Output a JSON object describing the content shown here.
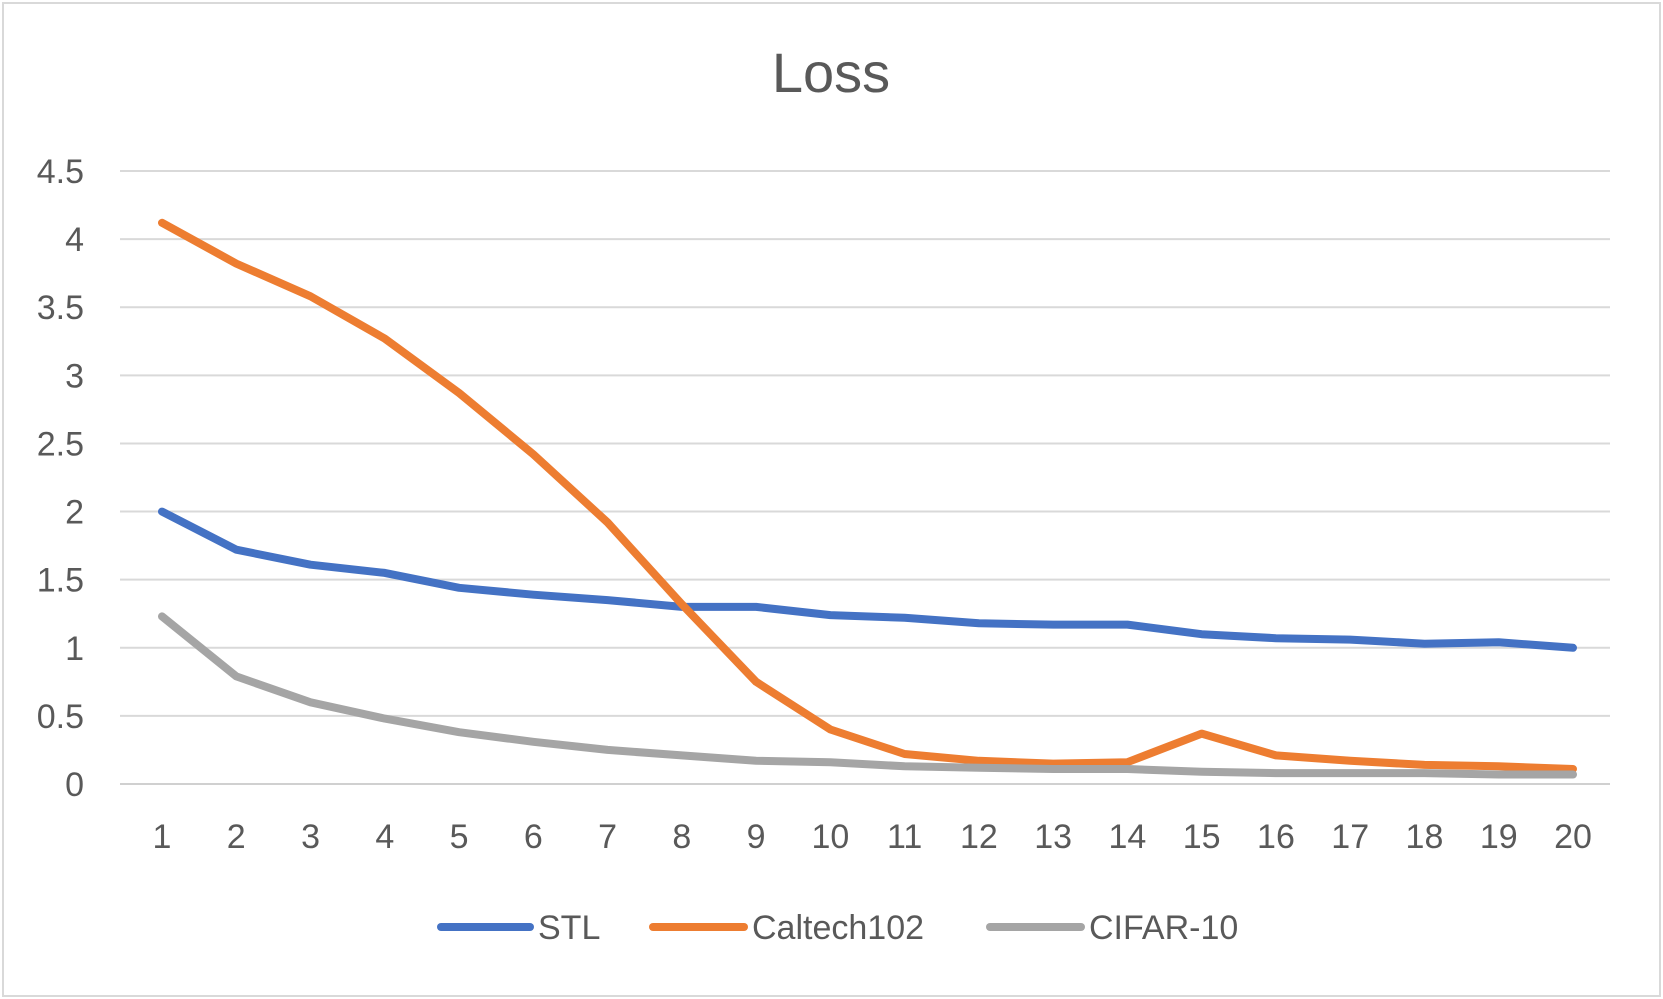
{
  "chart_data": {
    "type": "line",
    "title": "Loss",
    "xlabel": "",
    "ylabel": "",
    "x": [
      "1",
      "2",
      "3",
      "4",
      "5",
      "6",
      "7",
      "8",
      "9",
      "10",
      "11",
      "12",
      "13",
      "14",
      "15",
      "16",
      "17",
      "18",
      "19",
      "20"
    ],
    "ylim": [
      0,
      4.5
    ],
    "yticks": [
      "0",
      "0.5",
      "1",
      "1.5",
      "2",
      "2.5",
      "3",
      "3.5",
      "4",
      "4.5"
    ],
    "grid": true,
    "legend_position": "bottom",
    "series": [
      {
        "name": "STL",
        "color": "#4472C4",
        "values": [
          2.0,
          1.72,
          1.61,
          1.55,
          1.44,
          1.39,
          1.35,
          1.3,
          1.3,
          1.24,
          1.22,
          1.18,
          1.17,
          1.17,
          1.1,
          1.07,
          1.06,
          1.03,
          1.04,
          1.0
        ]
      },
      {
        "name": "Caltech102",
        "color": "#ED7D31",
        "values": [
          4.12,
          3.82,
          3.58,
          3.27,
          2.87,
          2.42,
          1.92,
          1.32,
          0.75,
          0.4,
          0.22,
          0.17,
          0.15,
          0.16,
          0.37,
          0.21,
          0.17,
          0.14,
          0.13,
          0.11
        ]
      },
      {
        "name": "CIFAR-10",
        "color": "#A5A5A5",
        "values": [
          1.23,
          0.79,
          0.6,
          0.48,
          0.38,
          0.31,
          0.25,
          0.21,
          0.17,
          0.16,
          0.13,
          0.12,
          0.11,
          0.11,
          0.09,
          0.08,
          0.08,
          0.08,
          0.07,
          0.07
        ]
      }
    ]
  }
}
